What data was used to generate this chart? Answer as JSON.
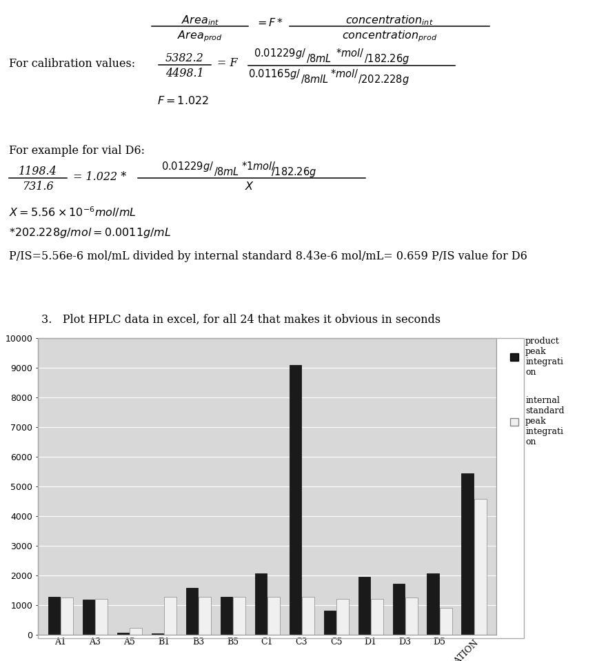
{
  "categories": [
    "A1",
    "A3",
    "A5",
    "B1",
    "B3",
    "B5",
    "C1",
    "C3",
    "C5",
    "D1",
    "D3",
    "D5",
    "CALIBRATION"
  ],
  "prod_values": [
    1280,
    1180,
    60,
    50,
    1580,
    1280,
    2060,
    9100,
    820,
    1950,
    1730,
    2070,
    5450
  ],
  "is_values": [
    1260,
    1220,
    230,
    1280,
    1290,
    1280,
    1290,
    1280,
    1220,
    1200,
    1250,
    900,
    4580
  ],
  "ylim": [
    0,
    10000
  ],
  "yticks": [
    0,
    1000,
    2000,
    3000,
    4000,
    5000,
    6000,
    7000,
    8000,
    9000,
    10000
  ],
  "bar_prod_color": "#1a1a1a",
  "bar_is_color": "#f0f0f0",
  "chart_bg": "#d8d8d8",
  "pis_text": "P/IS=5.56e-6 mol/mL divided by internal standard 8.43e-6 mol/mL= 0.659 P/IS value for D6",
  "title_text": "3.   Plot HPLC data in excel, for all 24 that makes it obvious in seconds"
}
